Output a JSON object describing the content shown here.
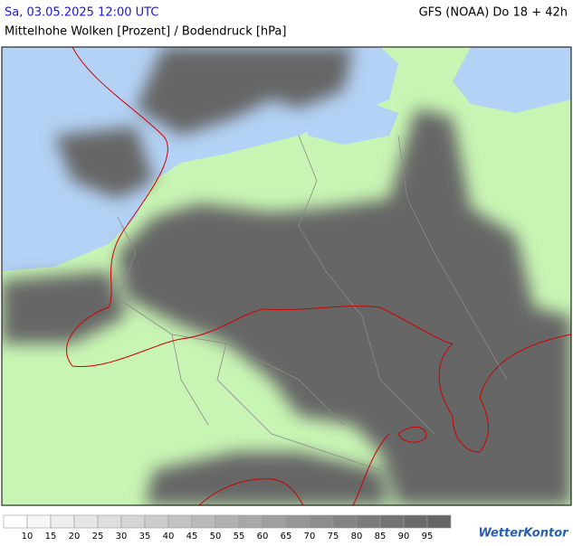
{
  "header": {
    "datetime": "Sa, 03.05.2025 12:00 UTC",
    "model": "GFS (NOAA) Do 18 + 42h",
    "subtitle": "Mittelhohe Wolken [Prozent] / Bodendruck [hPa]"
  },
  "legend": {
    "labels": [
      10,
      15,
      20,
      25,
      30,
      35,
      40,
      45,
      50,
      55,
      60,
      65,
      70,
      75,
      80,
      85,
      90,
      95
    ],
    "colors": [
      "#ffffff",
      "#f6f6f6",
      "#eeeeee",
      "#e6e6e6",
      "#dedede",
      "#d5d5d5",
      "#cccccc",
      "#c3c3c3",
      "#bababa",
      "#b1b1b1",
      "#a8a8a8",
      "#9f9f9f",
      "#969696",
      "#8d8d8d",
      "#848484",
      "#7b7b7b",
      "#737373",
      "#6b6b6b",
      "#666666"
    ]
  },
  "logo": "WetterKontor"
}
